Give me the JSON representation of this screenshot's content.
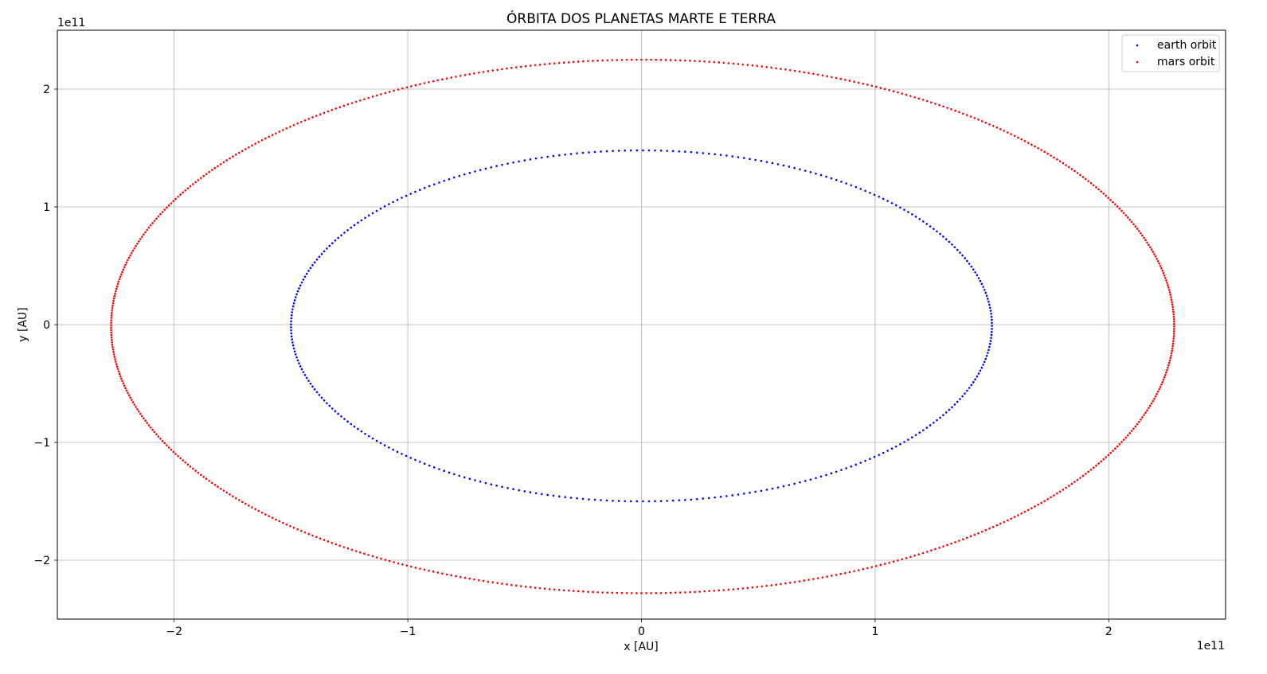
{
  "chart_data": {
    "type": "scatter",
    "title": "ÓRBITA DOS PLANETAS MARTE E TERRA",
    "xlabel": "x [AU]",
    "ylabel": "y [AU]",
    "x_offset_text": "1e11",
    "y_offset_text": "1e11",
    "xlim": [
      -250000000000.0,
      250000000000.0
    ],
    "ylim": [
      -250000000000.0,
      250000000000.0
    ],
    "x_ticks": [
      -200000000000.0,
      -100000000000.0,
      0,
      100000000000.0,
      200000000000.0
    ],
    "x_tick_labels": [
      "−2",
      "−1",
      "0",
      "1",
      "2"
    ],
    "y_ticks": [
      -200000000000.0,
      -100000000000.0,
      0,
      100000000000.0,
      200000000000.0
    ],
    "y_tick_labels": [
      "−2",
      "−1",
      "0",
      "1",
      "2"
    ],
    "grid": true,
    "legend_position": "top-right",
    "series": [
      {
        "name": "earth orbit",
        "color": "#0000ff",
        "orbit": {
          "x_min": -150000000000.0,
          "x_max": 150000000000.0,
          "y_min": -150000000000.0,
          "y_max": 148000000000.0,
          "point_count": 365
        }
      },
      {
        "name": "mars orbit",
        "color": "#ff0000",
        "orbit": {
          "x_min": -227000000000.0,
          "x_max": 228000000000.0,
          "y_min": -228000000000.0,
          "y_max": 225000000000.0,
          "point_count": 687
        }
      }
    ]
  }
}
